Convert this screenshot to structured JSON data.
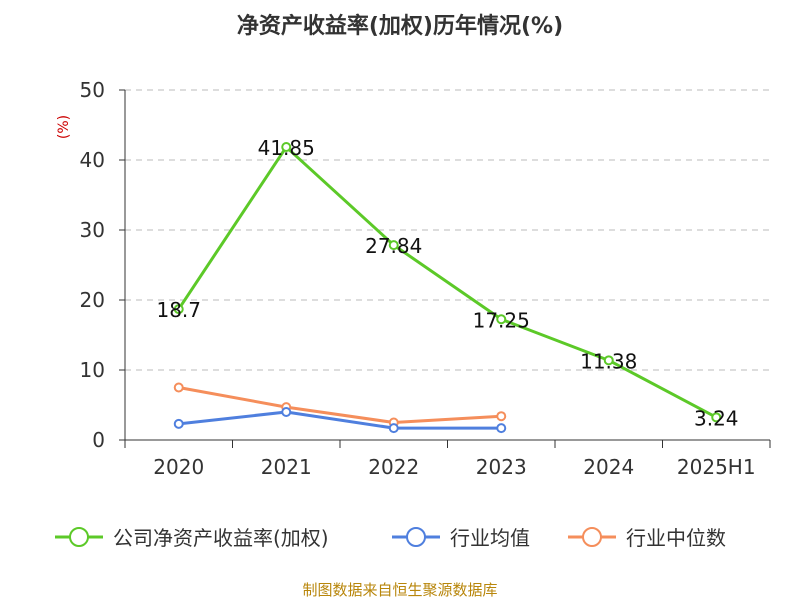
{
  "chart_data": {
    "type": "line",
    "title": "净资产收益率(加权)历年情况(%)",
    "unit_label": "(%)",
    "categories": [
      "2020",
      "2021",
      "2022",
      "2023",
      "2024",
      "2025H1"
    ],
    "ylim": [
      0,
      50
    ],
    "yticks": [
      0,
      10,
      20,
      30,
      40,
      50
    ],
    "grid": true,
    "legend_position": "bottom",
    "series": [
      {
        "name": "公司净资产收益率(加权)",
        "color": "#5cc928",
        "values": [
          18.7,
          41.85,
          27.84,
          17.25,
          11.38,
          3.24
        ],
        "labels": [
          "18.7",
          "41.85",
          "27.84",
          "17.25",
          "11.38",
          "3.24"
        ]
      },
      {
        "name": "行业均值",
        "color": "#4f7fde",
        "values": [
          2.3,
          4.0,
          1.7,
          1.7,
          null,
          null
        ]
      },
      {
        "name": "行业中位数",
        "color": "#f58e5b",
        "values": [
          7.5,
          4.7,
          2.5,
          3.4,
          null,
          null
        ]
      }
    ]
  },
  "source_text": "制图数据来自恒生聚源数据库"
}
